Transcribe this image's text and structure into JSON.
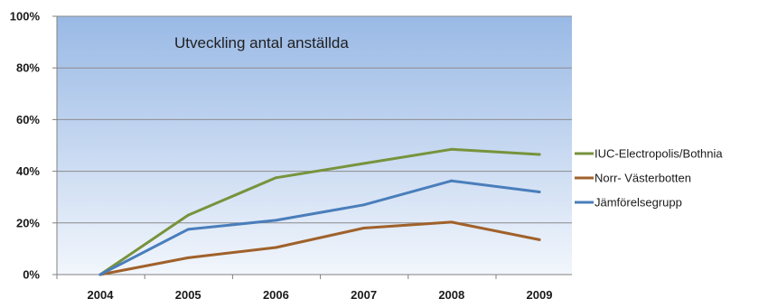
{
  "chart_data": {
    "type": "line",
    "title": "Utveckling antal anställda",
    "categories": [
      "2004",
      "2005",
      "2006",
      "2007",
      "2008",
      "2009"
    ],
    "ylim": [
      0,
      100
    ],
    "yticks": [
      "0%",
      "20%",
      "40%",
      "60%",
      "80%",
      "100%"
    ],
    "grid": true,
    "legend_position": "right",
    "series": [
      {
        "name": "IUC-Electropolis/Bothnia",
        "color": "#77933c",
        "values": [
          0,
          23,
          37.5,
          43,
          48.5,
          46.5
        ]
      },
      {
        "name": "Norr- Västerbotten",
        "color": "#a0612a",
        "values": [
          0,
          6.5,
          10.5,
          18,
          20.3,
          13.5
        ]
      },
      {
        "name": "Jämförelsegrupp",
        "color": "#4a7ebb",
        "values": [
          0,
          17.5,
          21,
          27,
          36.3,
          32
        ]
      }
    ]
  }
}
